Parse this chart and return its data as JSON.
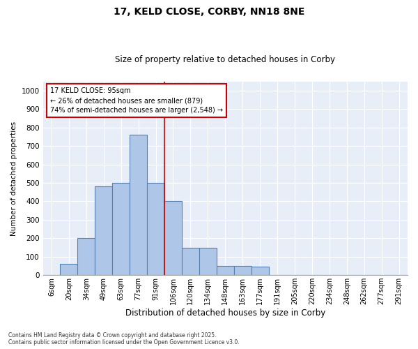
{
  "title_line1": "17, KELD CLOSE, CORBY, NN18 8NE",
  "title_line2": "Size of property relative to detached houses in Corby",
  "xlabel": "Distribution of detached houses by size in Corby",
  "ylabel": "Number of detached properties",
  "footnote": "Contains HM Land Registry data © Crown copyright and database right 2025.\nContains public sector information licensed under the Open Government Licence v3.0.",
  "annotation_title": "17 KELD CLOSE: 95sqm",
  "annotation_line2": "← 26% of detached houses are smaller (879)",
  "annotation_line3": "74% of semi-detached houses are larger (2,548) →",
  "bar_categories": [
    "6sqm",
    "20sqm",
    "34sqm",
    "49sqm",
    "63sqm",
    "77sqm",
    "91sqm",
    "106sqm",
    "120sqm",
    "134sqm",
    "148sqm",
    "163sqm",
    "177sqm",
    "191sqm",
    "205sqm",
    "220sqm",
    "234sqm",
    "248sqm",
    "262sqm",
    "277sqm",
    "291sqm"
  ],
  "bar_values": [
    0,
    60,
    200,
    480,
    500,
    760,
    500,
    400,
    150,
    150,
    50,
    50,
    45,
    0,
    0,
    0,
    0,
    0,
    0,
    0,
    0
  ],
  "bar_color": "#aec6e8",
  "bar_edge_color": "#5580b0",
  "annotation_box_color": "#cc0000",
  "background_color": "#e8eef8",
  "ylim": [
    0,
    1050
  ],
  "yticks": [
    0,
    100,
    200,
    300,
    400,
    500,
    600,
    700,
    800,
    900,
    1000
  ],
  "property_line_idx": 6.5,
  "figsize": [
    6.0,
    5.0
  ],
  "dpi": 100
}
